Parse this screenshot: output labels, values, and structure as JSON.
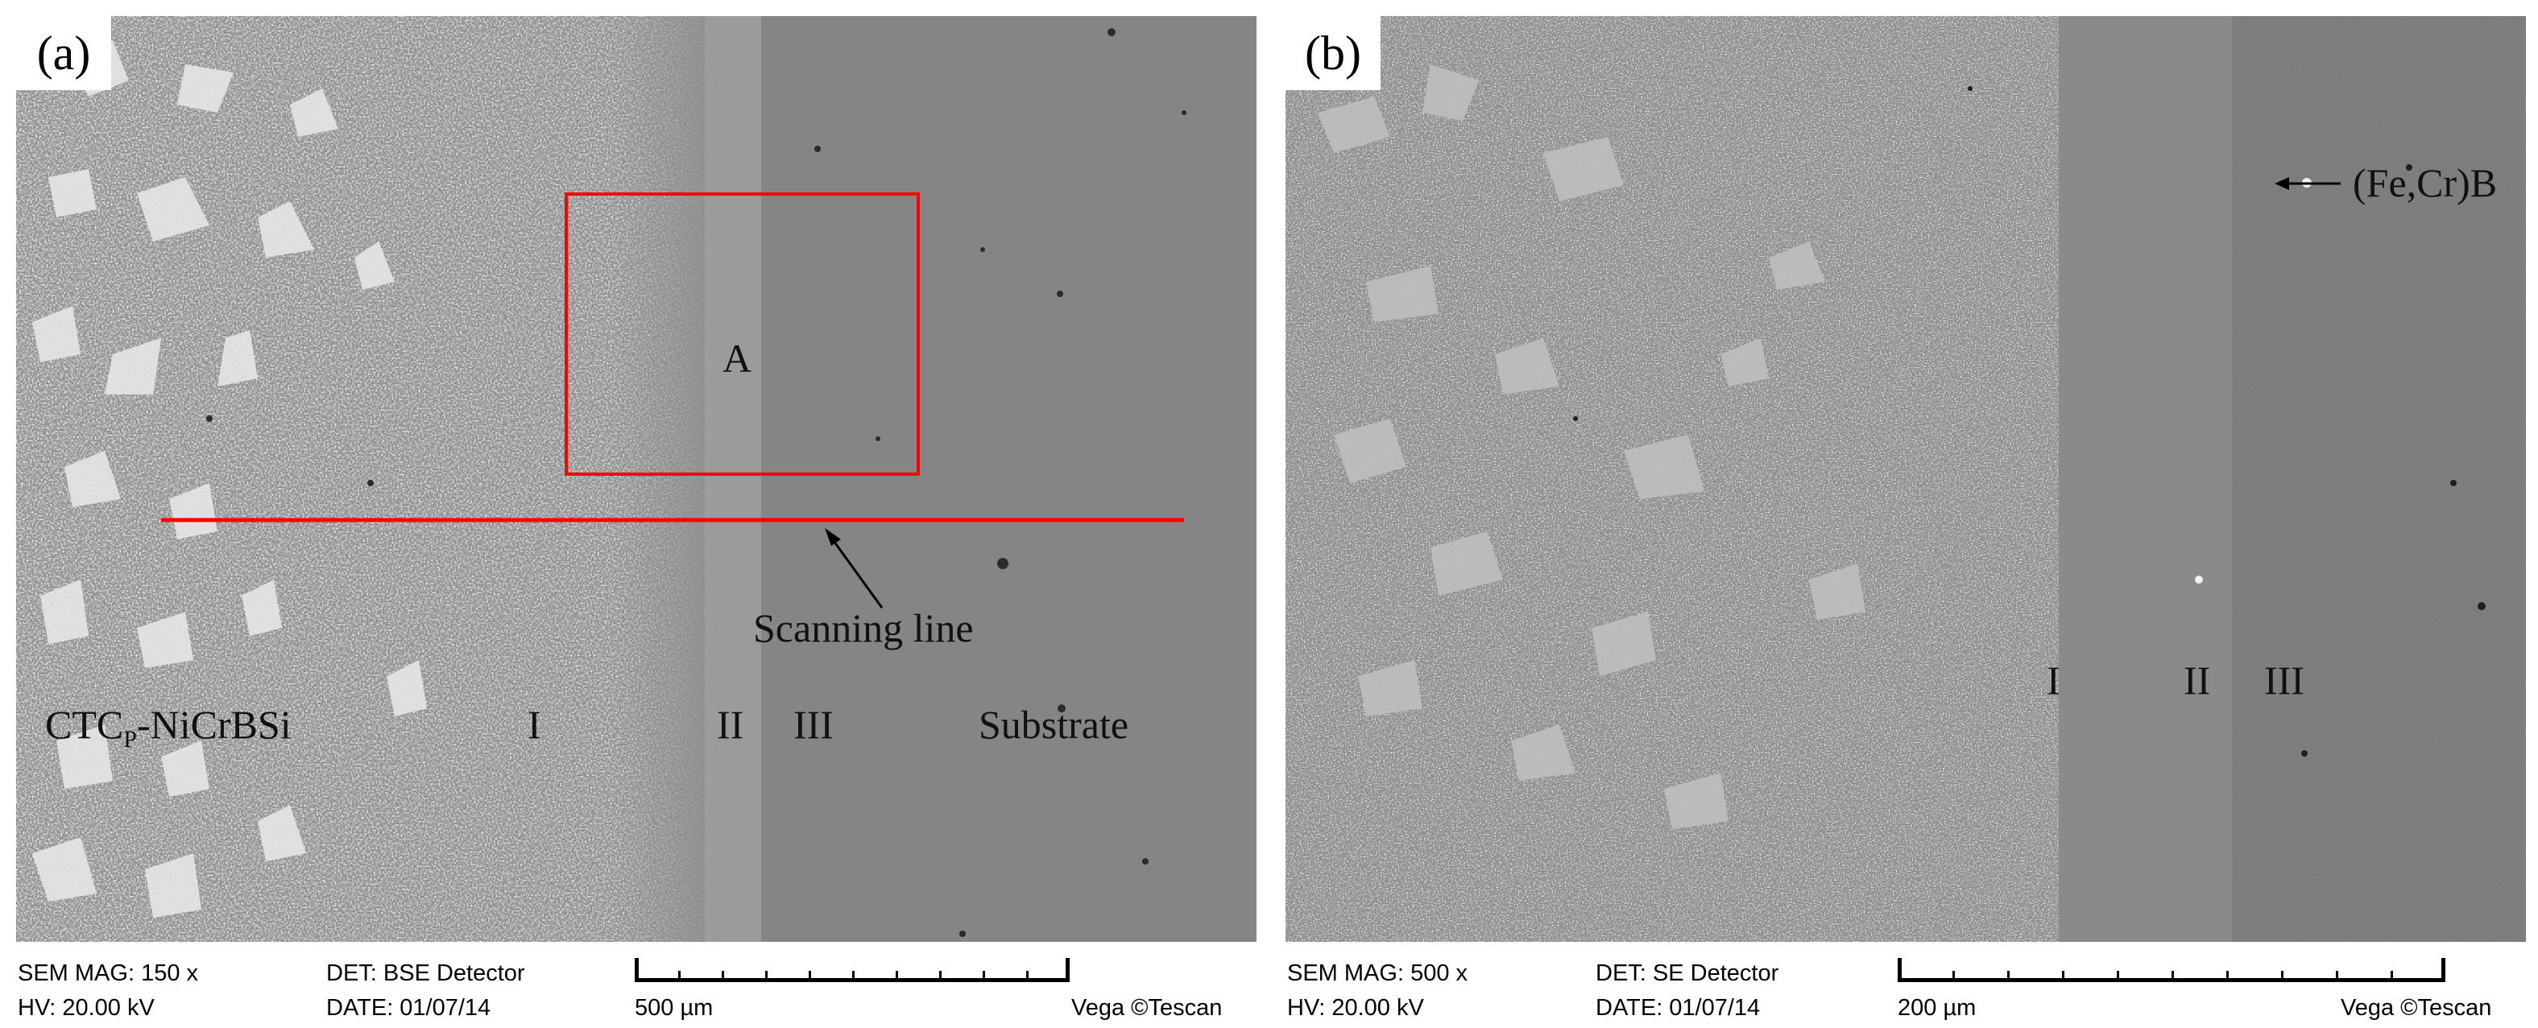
{
  "figure": {
    "panels": [
      {
        "tag": "(a)",
        "labels": {
          "region_A": "A",
          "scanning_line": "Scanning line",
          "coating_main": "CTC",
          "coating_sub": "P",
          "coating_tail": "-NiCrBSi",
          "zone_1": "I",
          "zone_2": "II",
          "zone_3": "III",
          "substrate": "Substrate"
        },
        "info": {
          "mag": "SEM MAG: 150 x",
          "det": "DET: BSE Detector",
          "hv": "HV:   20.00 kV",
          "date": "DATE: 01/07/14",
          "scale": "500 µm",
          "brand": "Vega ©Tescan"
        },
        "colors": {
          "annotation": "#ff0000"
        }
      },
      {
        "tag": "(b)",
        "labels": {
          "phase": "(Fe,Cr)B",
          "zone_1": "I",
          "zone_2": "II",
          "zone_3": "III"
        },
        "info": {
          "mag": "SEM MAG: 500 x",
          "det": "DET: SE Detector",
          "hv": "HV:   20.00 kV",
          "date": "DATE: 01/07/14",
          "scale": "200 µm",
          "brand": "Vega ©Tescan"
        }
      }
    ]
  }
}
